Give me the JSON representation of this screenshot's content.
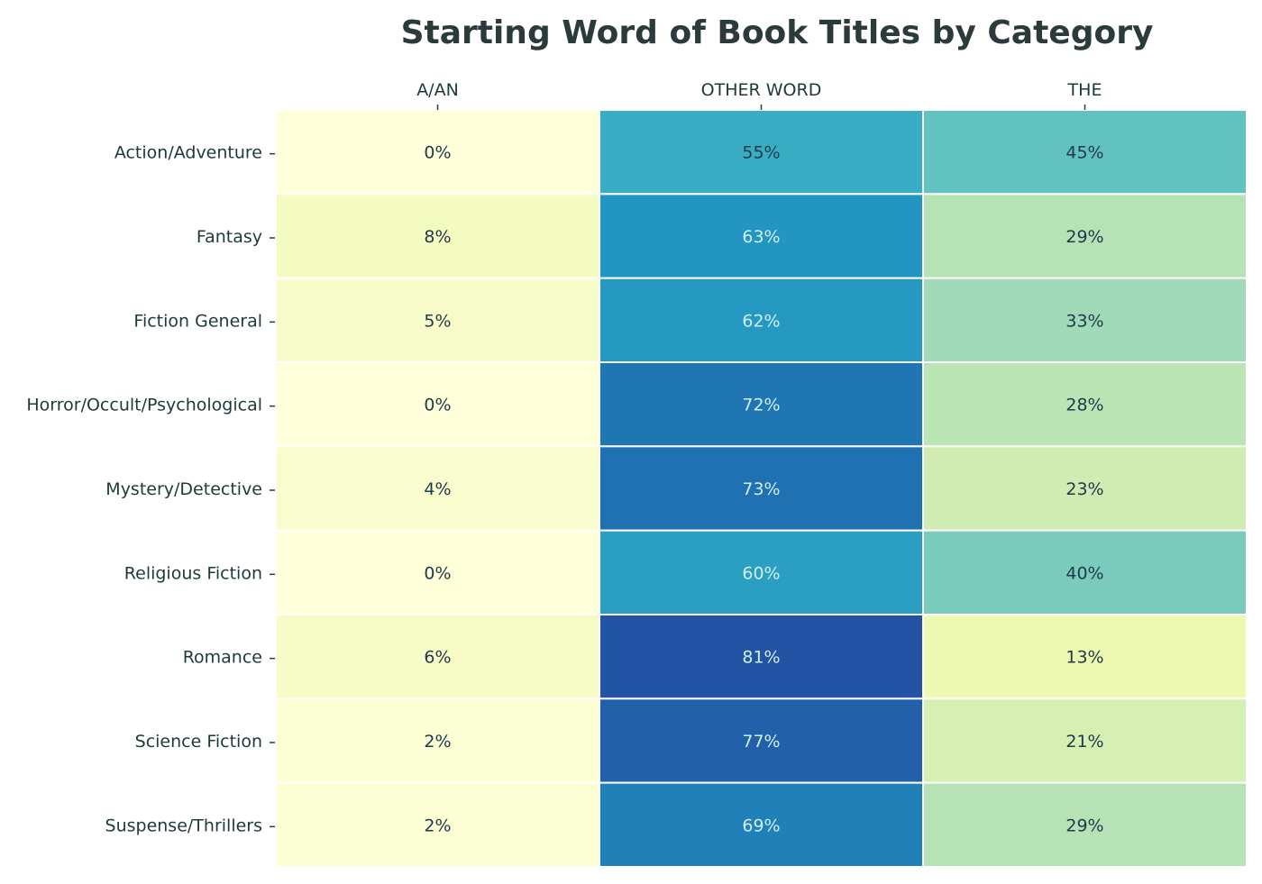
{
  "chart_data": {
    "type": "heatmap",
    "title": "Starting Word of Book Titles by Category",
    "columns": [
      "A/AN",
      "OTHER WORD",
      "THE"
    ],
    "rows": [
      "Action/Adventure",
      "Fantasy",
      "Fiction General",
      "Horror/Occult/Psychological",
      "Mystery/Detective",
      "Religious Fiction",
      "Romance",
      "Science Fiction",
      "Suspense/Thrillers"
    ],
    "values": [
      [
        0,
        55,
        45
      ],
      [
        8,
        63,
        29
      ],
      [
        5,
        62,
        33
      ],
      [
        0,
        72,
        28
      ],
      [
        4,
        73,
        23
      ],
      [
        0,
        60,
        40
      ],
      [
        6,
        81,
        13
      ],
      [
        2,
        77,
        21
      ],
      [
        2,
        69,
        29
      ]
    ],
    "value_suffix": "%",
    "colormap": "YlGnBu",
    "colorbar": false,
    "x_ticks_position": "top"
  }
}
